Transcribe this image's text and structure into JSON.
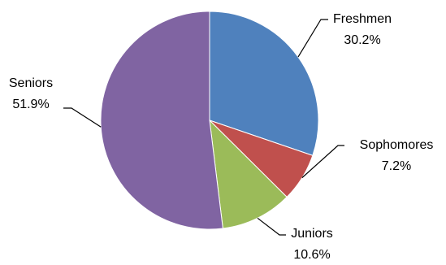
{
  "chart_data": {
    "type": "pie",
    "title": "",
    "categories": [
      "Freshmen",
      "Sophomores",
      "Juniors",
      "Seniors"
    ],
    "values": [
      30.2,
      7.2,
      10.6,
      51.9
    ],
    "value_labels": [
      "30.2%",
      "7.2%",
      "10.6%",
      "51.9%"
    ],
    "colors": [
      "#4F81BD",
      "#C0504D",
      "#9BBB59",
      "#8064A2"
    ],
    "start_angle": "12 o'clock",
    "direction": "clockwise",
    "legend": "none",
    "data_labels": "outside with leader lines"
  }
}
